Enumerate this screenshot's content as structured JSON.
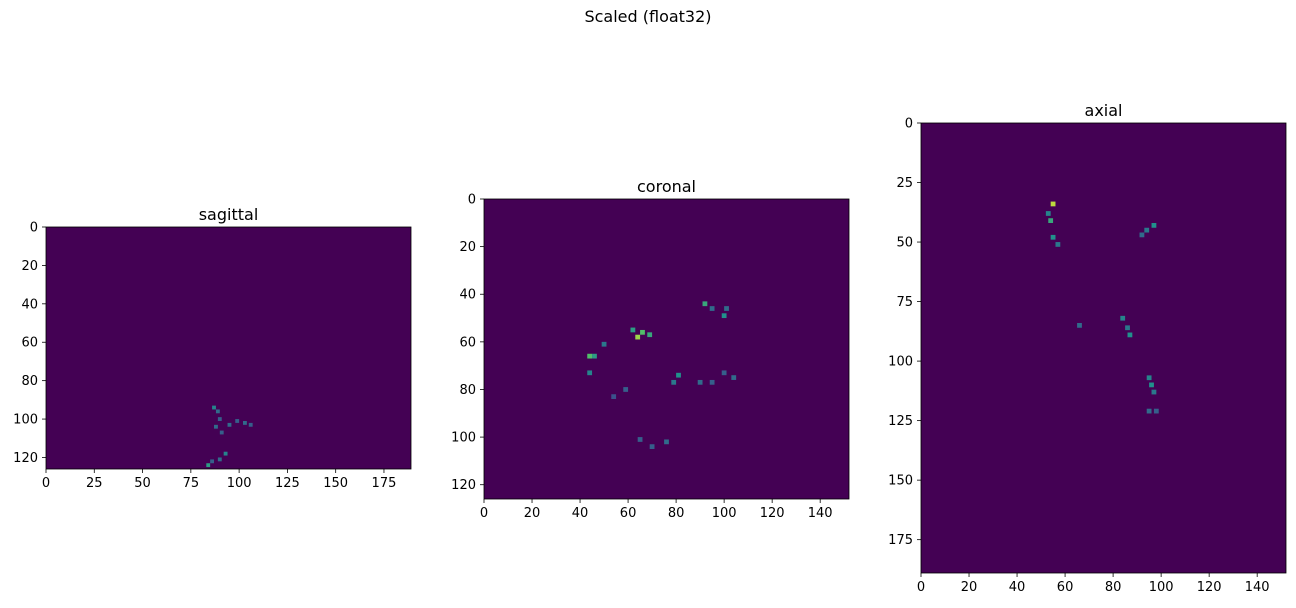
{
  "figure": {
    "suptitle": "Scaled (float32)"
  },
  "colors": {
    "background": "#440154",
    "colormap": "viridis"
  },
  "chart_data": [
    {
      "type": "heatmap",
      "title": "sagittal",
      "xlim": [
        0,
        189
      ],
      "ylim": [
        126,
        0
      ],
      "xticks": [
        0,
        25,
        50,
        75,
        100,
        125,
        150,
        175
      ],
      "yticks": [
        0,
        20,
        40,
        60,
        80,
        100,
        120
      ],
      "bright_spots": [
        {
          "x": 87,
          "y": 94,
          "v": 0.45
        },
        {
          "x": 89,
          "y": 96,
          "v": 0.35
        },
        {
          "x": 90,
          "y": 100,
          "v": 0.3
        },
        {
          "x": 88,
          "y": 104,
          "v": 0.35
        },
        {
          "x": 91,
          "y": 107,
          "v": 0.3
        },
        {
          "x": 95,
          "y": 103,
          "v": 0.35
        },
        {
          "x": 99,
          "y": 101,
          "v": 0.3
        },
        {
          "x": 103,
          "y": 102,
          "v": 0.35
        },
        {
          "x": 106,
          "y": 103,
          "v": 0.3
        },
        {
          "x": 93,
          "y": 118,
          "v": 0.45
        },
        {
          "x": 90,
          "y": 121,
          "v": 0.35
        },
        {
          "x": 84,
          "y": 124,
          "v": 0.55
        },
        {
          "x": 86,
          "y": 122,
          "v": 0.3
        }
      ]
    },
    {
      "type": "heatmap",
      "title": "coronal",
      "xlim": [
        0,
        152
      ],
      "ylim": [
        126,
        0
      ],
      "xticks": [
        0,
        20,
        40,
        60,
        80,
        100,
        120,
        140
      ],
      "yticks": [
        0,
        20,
        40,
        60,
        80,
        100,
        120
      ],
      "bright_spots": [
        {
          "x": 92,
          "y": 44,
          "v": 0.6
        },
        {
          "x": 95,
          "y": 46,
          "v": 0.35
        },
        {
          "x": 100,
          "y": 49,
          "v": 0.5
        },
        {
          "x": 101,
          "y": 46,
          "v": 0.35
        },
        {
          "x": 62,
          "y": 55,
          "v": 0.55
        },
        {
          "x": 64,
          "y": 58,
          "v": 0.85
        },
        {
          "x": 66,
          "y": 56,
          "v": 0.7
        },
        {
          "x": 69,
          "y": 57,
          "v": 0.6
        },
        {
          "x": 50,
          "y": 61,
          "v": 0.4
        },
        {
          "x": 44,
          "y": 66,
          "v": 0.7
        },
        {
          "x": 46,
          "y": 66,
          "v": 0.55
        },
        {
          "x": 44,
          "y": 73,
          "v": 0.45
        },
        {
          "x": 81,
          "y": 74,
          "v": 0.5
        },
        {
          "x": 79,
          "y": 77,
          "v": 0.4
        },
        {
          "x": 90,
          "y": 77,
          "v": 0.35
        },
        {
          "x": 95,
          "y": 77,
          "v": 0.3
        },
        {
          "x": 100,
          "y": 73,
          "v": 0.3
        },
        {
          "x": 104,
          "y": 75,
          "v": 0.35
        },
        {
          "x": 59,
          "y": 80,
          "v": 0.3
        },
        {
          "x": 54,
          "y": 83,
          "v": 0.25
        },
        {
          "x": 65,
          "y": 101,
          "v": 0.3
        },
        {
          "x": 70,
          "y": 104,
          "v": 0.3
        },
        {
          "x": 76,
          "y": 102,
          "v": 0.35
        }
      ]
    },
    {
      "type": "heatmap",
      "title": "axial",
      "xlim": [
        0,
        152
      ],
      "ylim": [
        189,
        0
      ],
      "xticks": [
        0,
        20,
        40,
        60,
        80,
        100,
        120,
        140
      ],
      "yticks": [
        0,
        25,
        50,
        75,
        100,
        125,
        150,
        175
      ],
      "bright_spots": [
        {
          "x": 55,
          "y": 34,
          "v": 0.9
        },
        {
          "x": 53,
          "y": 38,
          "v": 0.45
        },
        {
          "x": 54,
          "y": 41,
          "v": 0.6
        },
        {
          "x": 55,
          "y": 48,
          "v": 0.5
        },
        {
          "x": 57,
          "y": 51,
          "v": 0.4
        },
        {
          "x": 97,
          "y": 43,
          "v": 0.5
        },
        {
          "x": 94,
          "y": 45,
          "v": 0.4
        },
        {
          "x": 92,
          "y": 47,
          "v": 0.35
        },
        {
          "x": 66,
          "y": 85,
          "v": 0.35
        },
        {
          "x": 84,
          "y": 82,
          "v": 0.45
        },
        {
          "x": 86,
          "y": 86,
          "v": 0.4
        },
        {
          "x": 87,
          "y": 89,
          "v": 0.5
        },
        {
          "x": 95,
          "y": 107,
          "v": 0.45
        },
        {
          "x": 96,
          "y": 110,
          "v": 0.5
        },
        {
          "x": 97,
          "y": 113,
          "v": 0.4
        },
        {
          "x": 95,
          "y": 121,
          "v": 0.35
        },
        {
          "x": 98,
          "y": 121,
          "v": 0.3
        }
      ]
    }
  ]
}
